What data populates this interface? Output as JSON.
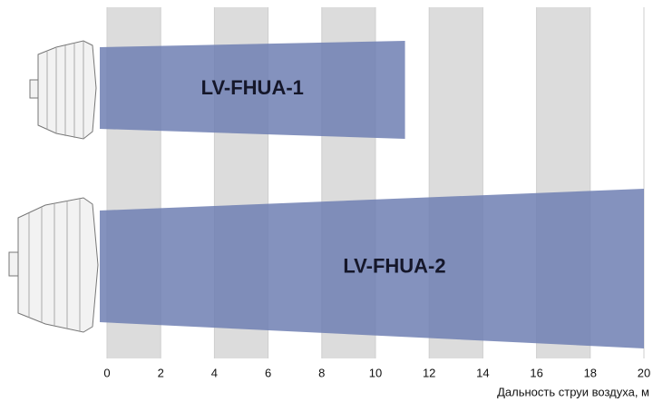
{
  "chart_data": {
    "type": "bar",
    "categories": [
      "LV-FHUA-1",
      "LV-FHUA-2"
    ],
    "values": [
      11.1,
      20
    ],
    "color": "#6f7fb3",
    "xlim": [
      0,
      20
    ],
    "xticks": [
      0,
      2,
      4,
      6,
      8,
      10,
      12,
      14,
      16,
      18,
      20
    ],
    "x_label": "Дальность струи воздуха, м"
  }
}
